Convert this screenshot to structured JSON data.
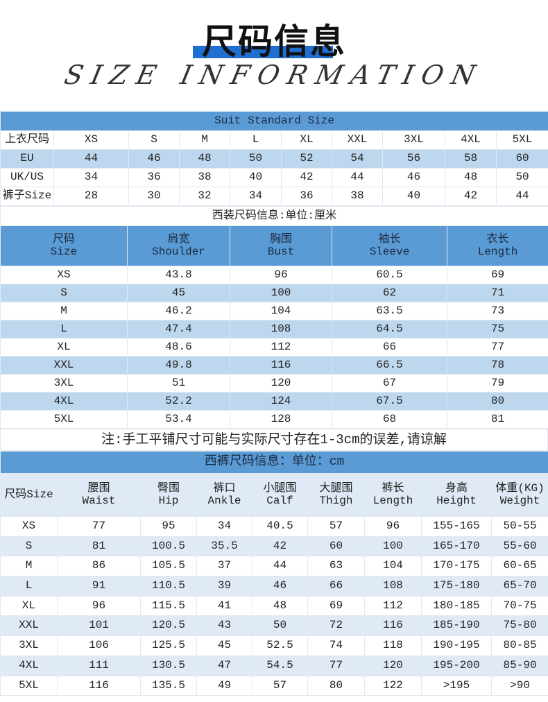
{
  "header": {
    "title": "尺码信息",
    "subtitle": "SIZE INFORMATION",
    "accent": "#1e6fd0"
  },
  "suit_standard": {
    "title": "Suit Standard Size",
    "rows": [
      [
        "上衣尺码",
        "XS",
        "S",
        "M",
        "L",
        "XL",
        "XXL",
        "3XL",
        "4XL",
        "5XL"
      ],
      [
        "EU",
        "44",
        "46",
        "48",
        "50",
        "52",
        "54",
        "56",
        "58",
        "60"
      ],
      [
        "UK/US",
        "34",
        "36",
        "38",
        "40",
        "42",
        "44",
        "46",
        "48",
        "50"
      ],
      [
        "裤子Size",
        "28",
        "30",
        "32",
        "34",
        "36",
        "38",
        "40",
        "42",
        "44"
      ]
    ]
  },
  "suit_size": {
    "title": "西装尺码信息:单位:厘米",
    "headers": [
      [
        "尺码",
        "Size"
      ],
      [
        "肩宽",
        "Shoulder"
      ],
      [
        "胸围",
        "Bust"
      ],
      [
        "袖长",
        "Sleeve"
      ],
      [
        "衣长",
        "Length"
      ]
    ],
    "rows": [
      [
        "XS",
        "43.8",
        "96",
        "60.5",
        "69"
      ],
      [
        "S",
        "45",
        "100",
        "62",
        "71"
      ],
      [
        "M",
        "46.2",
        "104",
        "63.5",
        "73"
      ],
      [
        "L",
        "47.4",
        "108",
        "64.5",
        "75"
      ],
      [
        "XL",
        "48.6",
        "112",
        "66",
        "77"
      ],
      [
        "XXL",
        "49.8",
        "116",
        "66.5",
        "78"
      ],
      [
        "3XL",
        "51",
        "120",
        "67",
        "79"
      ],
      [
        "4XL",
        "52.2",
        "124",
        "67.5",
        "80"
      ],
      [
        "5XL",
        "53.4",
        "128",
        "68",
        "81"
      ]
    ]
  },
  "note": "注:手工平铺尺寸可能与实际尺寸存在1-3cm的误差,请谅解",
  "pants_size": {
    "title": "西裤尺码信息：单位：cm",
    "headers": [
      [
        "尺码Size",
        ""
      ],
      [
        "腰围",
        "Waist"
      ],
      [
        "臀围",
        "Hip"
      ],
      [
        "裤口",
        "Ankle"
      ],
      [
        "小腿围",
        "Calf"
      ],
      [
        "大腿围",
        "Thigh"
      ],
      [
        "裤长",
        "Length"
      ],
      [
        "身高",
        "Height"
      ],
      [
        "体重(KG)",
        "Weight"
      ]
    ],
    "rows": [
      [
        "XS",
        "77",
        "95",
        "34",
        "40.5",
        "57",
        "96",
        "155-165",
        "50-55"
      ],
      [
        "S",
        "81",
        "100.5",
        "35.5",
        "42",
        "60",
        "100",
        "165-170",
        "55-60"
      ],
      [
        "M",
        "86",
        "105.5",
        "37",
        "44",
        "63",
        "104",
        "170-175",
        "60-65"
      ],
      [
        "L",
        "91",
        "110.5",
        "39",
        "46",
        "66",
        "108",
        "175-180",
        "65-70"
      ],
      [
        "XL",
        "96",
        "115.5",
        "41",
        "48",
        "69",
        "112",
        "180-185",
        "70-75"
      ],
      [
        "XXL",
        "101",
        "120.5",
        "43",
        "50",
        "72",
        "116",
        "185-190",
        "75-80"
      ],
      [
        "3XL",
        "106",
        "125.5",
        "45",
        "52.5",
        "74",
        "118",
        "190-195",
        "80-85"
      ],
      [
        "4XL",
        "111",
        "130.5",
        "47",
        "54.5",
        "77",
        "120",
        "195-200",
        "85-90"
      ],
      [
        "5XL",
        "116",
        "135.5",
        "49",
        "57",
        "80",
        "122",
        ">195",
        ">90"
      ]
    ]
  }
}
